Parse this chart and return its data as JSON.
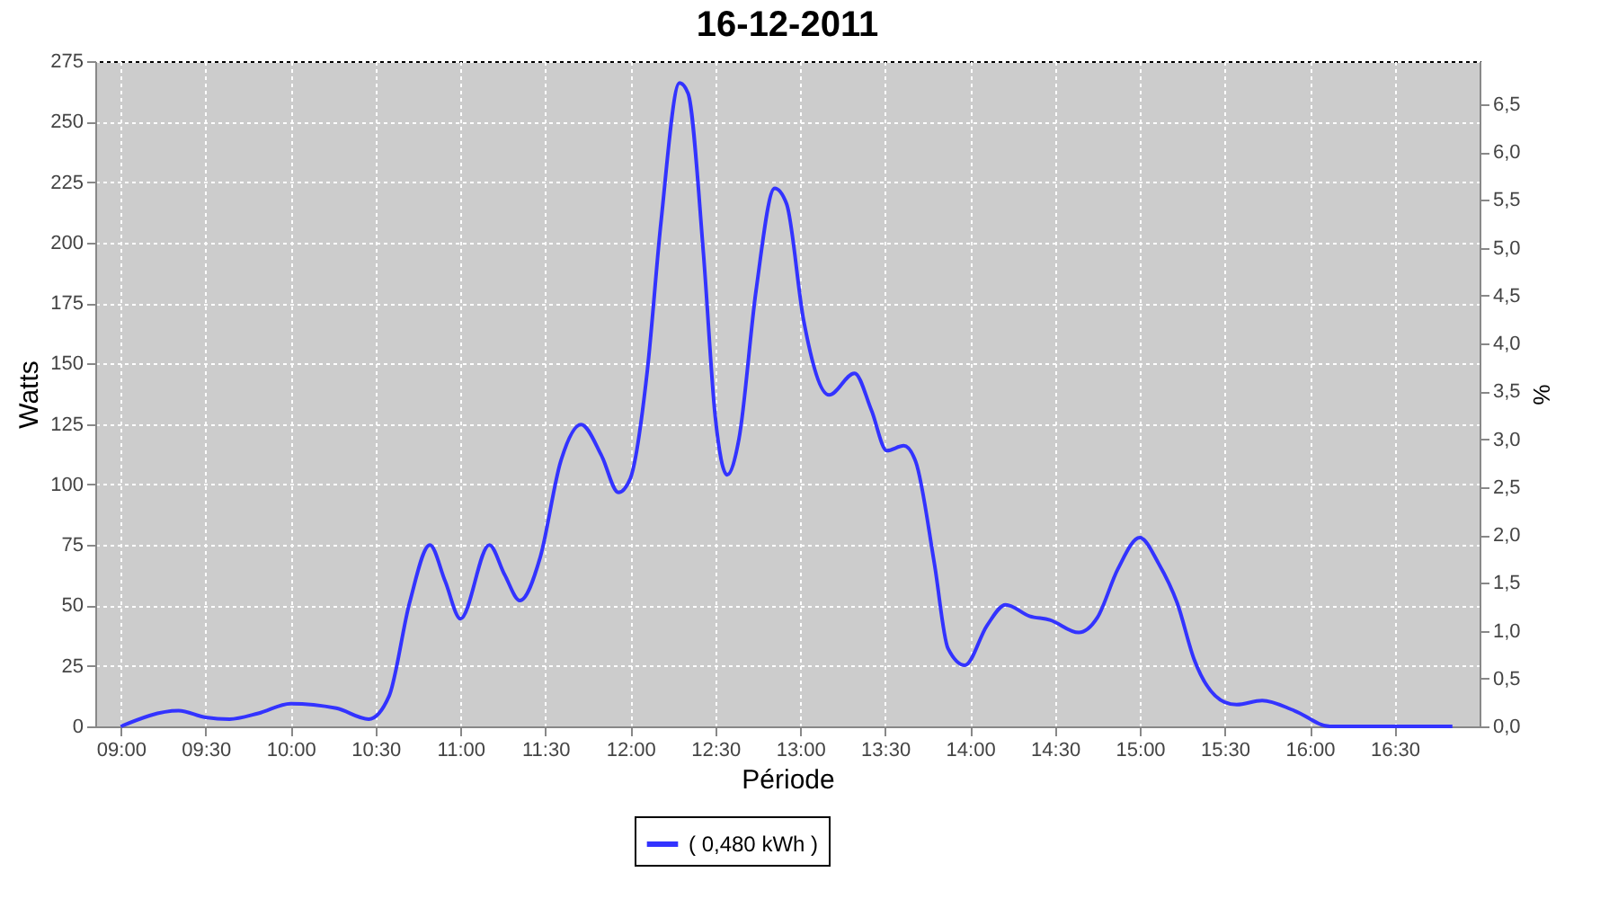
{
  "chart_data": {
    "type": "line",
    "title": "16-12-2011",
    "xlabel": "Période",
    "ylabel": "Watts",
    "y2label": "%",
    "x": [
      9.0,
      9.34,
      9.5,
      9.64,
      9.81,
      10.0,
      10.27,
      10.46,
      10.58,
      10.7,
      10.82,
      10.91,
      11.0,
      11.17,
      11.26,
      11.35,
      11.47,
      11.59,
      11.71,
      11.83,
      11.93,
      12.0,
      12.1,
      12.18,
      12.29,
      12.34,
      12.43,
      12.5,
      12.57,
      12.64,
      12.74,
      12.85,
      12.92,
      13.02,
      13.17,
      13.32,
      13.42,
      13.51,
      13.61,
      13.68,
      13.79,
      13.87,
      13.97,
      14.1,
      14.21,
      14.35,
      14.47,
      14.64,
      14.75,
      14.87,
      15.0,
      15.11,
      15.22,
      15.32,
      15.5,
      15.57,
      15.72,
      15.91,
      16.12,
      16.84
    ],
    "series": [
      {
        "name": "( 0,480 kWh )",
        "color": "#3333ff",
        "values": [
          0,
          6.5,
          3.7,
          3,
          5.4,
          9.4,
          7.5,
          3,
          12.6,
          51,
          75,
          60,
          44.5,
          75,
          62.7,
          52,
          70,
          109.5,
          124.8,
          112,
          96.7,
          102.5,
          147,
          208,
          266,
          261.7,
          196,
          128,
          104,
          119,
          180,
          222.4,
          216,
          168,
          137,
          146,
          130.6,
          114,
          116,
          109.5,
          67.4,
          32.3,
          25.3,
          41.7,
          50.3,
          45.6,
          44,
          38.8,
          45,
          65,
          78,
          67.4,
          51,
          27.6,
          10,
          9,
          10.7,
          6.5,
          0,
          0
        ]
      }
    ],
    "xlim": [
      8.85,
      17.0
    ],
    "xticks": [
      {
        "value": 9,
        "label": "09:00"
      },
      {
        "value": 9.5,
        "label": "09:30"
      },
      {
        "value": 10,
        "label": "10:00"
      },
      {
        "value": 10.5,
        "label": "10:30"
      },
      {
        "value": 11,
        "label": "11:00"
      },
      {
        "value": 11.5,
        "label": "11:30"
      },
      {
        "value": 12,
        "label": "12:00"
      },
      {
        "value": 12.5,
        "label": "12:30"
      },
      {
        "value": 13,
        "label": "13:00"
      },
      {
        "value": 13.5,
        "label": "13:30"
      },
      {
        "value": 14,
        "label": "14:00"
      },
      {
        "value": 14.5,
        "label": "14:30"
      },
      {
        "value": 15,
        "label": "15:00"
      },
      {
        "value": 15.5,
        "label": "15:30"
      },
      {
        "value": 16,
        "label": "16:00"
      },
      {
        "value": 16.5,
        "label": "16:30"
      }
    ],
    "ylim": [
      0,
      275
    ],
    "yticks": [
      0,
      25,
      50,
      75,
      100,
      125,
      150,
      175,
      200,
      225,
      250,
      275
    ],
    "y2lim": [
      0,
      6.95
    ],
    "y2ticks": [
      {
        "value": 0,
        "label": "0,0"
      },
      {
        "value": 0.5,
        "label": "0,5"
      },
      {
        "value": 1,
        "label": "1,0"
      },
      {
        "value": 1.5,
        "label": "1,5"
      },
      {
        "value": 2,
        "label": "2,0"
      },
      {
        "value": 2.5,
        "label": "2,5"
      },
      {
        "value": 3,
        "label": "3,0"
      },
      {
        "value": 3.5,
        "label": "3,5"
      },
      {
        "value": 4,
        "label": "4,0"
      },
      {
        "value": 4.5,
        "label": "4,5"
      },
      {
        "value": 5,
        "label": "5,0"
      },
      {
        "value": 5.5,
        "label": "5,5"
      },
      {
        "value": 6,
        "label": "6,0"
      },
      {
        "value": 6.5,
        "label": "6,5"
      }
    ],
    "grid": true,
    "legend": "bottom",
    "marker": "none",
    "line_style": "solid"
  }
}
